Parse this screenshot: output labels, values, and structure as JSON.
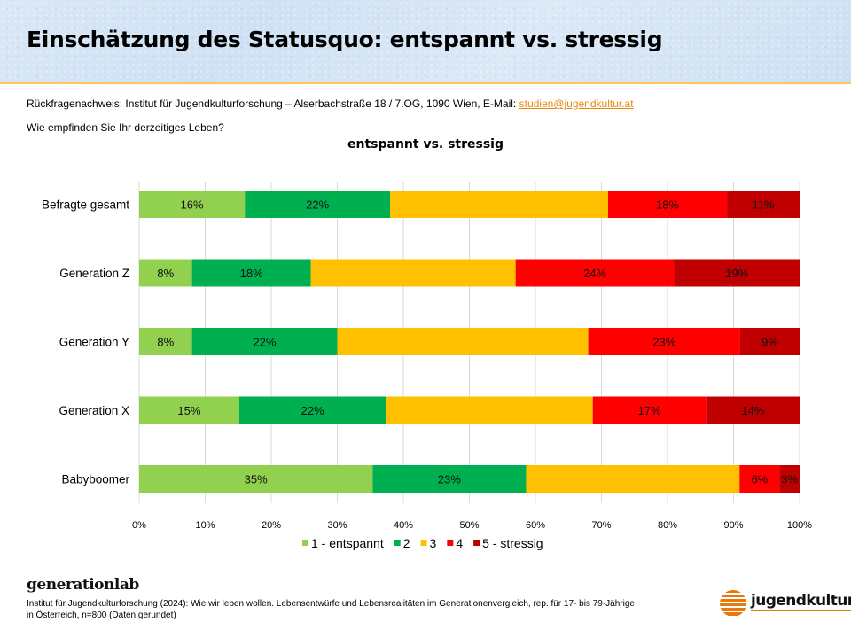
{
  "header": {
    "title": "Einschätzung des Statusquo: entspannt vs. stressig"
  },
  "contact": {
    "text": "Rückfragenachweis: Institut für Jugendkulturforschung – Alserbachstraße 18 / 7.OG, 1090 Wien, E-Mail: ",
    "email": "studien@jugendkultur.at"
  },
  "question": "Wie empfinden Sie Ihr derzeitiges Leben?",
  "colors": {
    "accent_line": "#ffc65a",
    "link": "#e8890c",
    "series": [
      "#92d050",
      "#00b050",
      "#ffc000",
      "#ff0000",
      "#c00000"
    ]
  },
  "chart_data": {
    "type": "bar",
    "orientation": "horizontal-stacked-100",
    "title": "entspannt vs. stressig",
    "xlabel": "",
    "ylabel": "",
    "xlim": [
      0,
      100
    ],
    "x_ticks": [
      "0%",
      "10%",
      "20%",
      "30%",
      "40%",
      "50%",
      "60%",
      "70%",
      "80%",
      "90%",
      "100%"
    ],
    "grid": true,
    "legend_position": "bottom",
    "categories": [
      "Befragte gesamt",
      "Generation Z",
      "Generation Y",
      "Generation X",
      "Babyboomer"
    ],
    "series": [
      {
        "name": "1 - entspannt",
        "values": [
          16,
          8,
          8,
          15,
          35
        ],
        "show_labels": true
      },
      {
        "name": "2",
        "values": [
          22,
          18,
          22,
          22,
          23
        ],
        "show_labels": true
      },
      {
        "name": "3",
        "values": [
          33,
          31,
          38,
          31,
          32
        ],
        "show_labels": false
      },
      {
        "name": "4",
        "values": [
          18,
          24,
          23,
          17,
          6
        ],
        "show_labels": true
      },
      {
        "name": "5 - stressig",
        "values": [
          11,
          19,
          9,
          14,
          3
        ],
        "show_labels": true
      }
    ]
  },
  "footer": {
    "brand": "generationlab",
    "source_line1": "Institut für Jugendkulturforschung (2024): Wie wir leben wollen. Lebensentwürfe und Lebensrealitäten im Generationenvergleich, rep. für 17- bis 79-Jährige",
    "source_line2": "in Österreich, n=800 (Daten gerundet)",
    "logo_text": "jugendkultur.at"
  }
}
